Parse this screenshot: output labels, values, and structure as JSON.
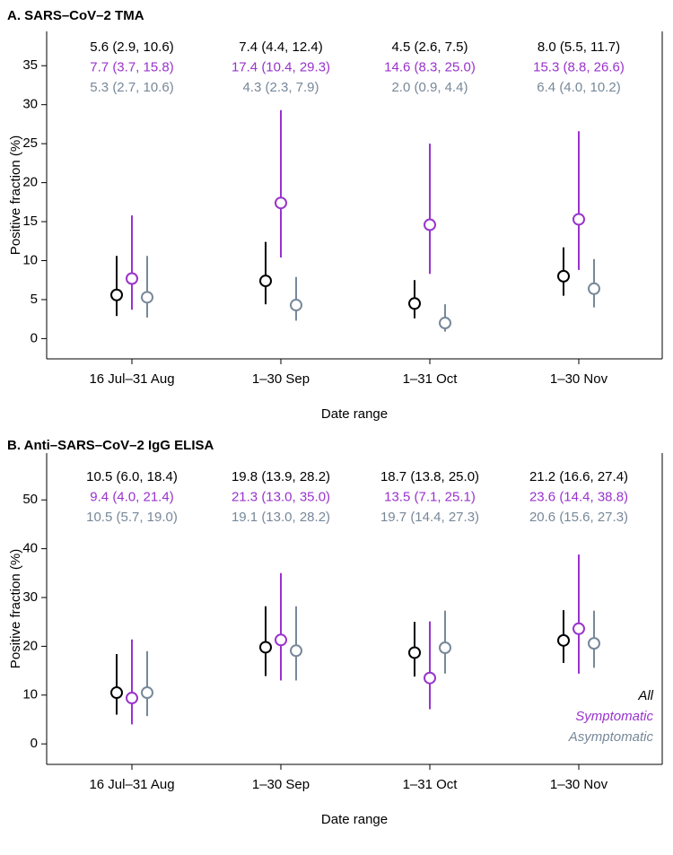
{
  "chart_data": [
    {
      "type": "pointrange",
      "title": "A. SARS–CoV–2 TMA",
      "x_label": "Date range",
      "y_label": "Positive fraction (%)",
      "categories": [
        "16 Jul–31 Aug",
        "1–30 Sep",
        "1–31 Oct",
        "1–30 Nov"
      ],
      "ylim": [
        -2.6,
        39.4
      ],
      "yticks": [
        0,
        5,
        10,
        15,
        20,
        25,
        30,
        35
      ],
      "series": [
        {
          "color": "#000000",
          "values": [
            5.6,
            7.4,
            4.5,
            8.0
          ],
          "lower": [
            2.9,
            4.4,
            2.6,
            5.5
          ],
          "upper": [
            10.6,
            12.4,
            7.5,
            11.7
          ],
          "value_labels": [
            "5.6 (2.9, 10.6)",
            "7.4 (4.4, 12.4)",
            "4.5 (2.6, 7.5)",
            "8.0 (5.5, 11.7)"
          ]
        },
        {
          "color": "#9933cc",
          "values": [
            7.7,
            17.4,
            14.6,
            15.3
          ],
          "lower": [
            3.7,
            10.4,
            8.3,
            8.8
          ],
          "upper": [
            15.8,
            29.3,
            25.0,
            26.6
          ],
          "value_labels": [
            "7.7 (3.7, 15.8)",
            "17.4 (10.4, 29.3)",
            "14.6 (8.3, 25.0)",
            "15.3 (8.8, 26.6)"
          ]
        },
        {
          "color": "#778899",
          "values": [
            5.3,
            4.3,
            2.0,
            6.4
          ],
          "lower": [
            2.7,
            2.3,
            0.9,
            4.0
          ],
          "upper": [
            10.6,
            7.9,
            4.4,
            10.2
          ],
          "value_labels": [
            "5.3 (2.7, 10.6)",
            "4.3 (2.3, 7.9)",
            "2.0 (0.9, 4.4)",
            "6.4 (4.0, 10.2)"
          ]
        }
      ]
    },
    {
      "type": "pointrange",
      "title": "B. Anti–SARS–CoV–2 IgG ELISA",
      "x_label": "Date range",
      "y_label": "Positive fraction (%)",
      "categories": [
        "16 Jul–31 Aug",
        "1–30 Sep",
        "1–31 Oct",
        "1–30 Nov"
      ],
      "ylim": [
        -4.2,
        59.6
      ],
      "yticks": [
        0,
        10,
        20,
        30,
        40,
        50
      ],
      "legend": "lower right",
      "series": [
        {
          "name": "All",
          "color": "#000000",
          "values": [
            10.5,
            19.8,
            18.7,
            21.2
          ],
          "lower": [
            6.0,
            13.9,
            13.8,
            16.6
          ],
          "upper": [
            18.4,
            28.2,
            25.0,
            27.4
          ],
          "value_labels": [
            "10.5 (6.0, 18.4)",
            "19.8 (13.9, 28.2)",
            "18.7 (13.8, 25.0)",
            "21.2 (16.6, 27.4)"
          ]
        },
        {
          "name": "Symptomatic",
          "color": "#9933cc",
          "values": [
            9.4,
            21.3,
            13.5,
            23.6
          ],
          "lower": [
            4.0,
            13.0,
            7.1,
            14.4
          ],
          "upper": [
            21.4,
            35.0,
            25.1,
            38.8
          ],
          "value_labels": [
            "9.4 (4.0, 21.4)",
            "21.3 (13.0, 35.0)",
            "13.5 (7.1, 25.1)",
            "23.6 (14.4, 38.8)"
          ]
        },
        {
          "name": "Asymptomatic",
          "color": "#778899",
          "values": [
            10.5,
            19.1,
            19.7,
            20.6
          ],
          "lower": [
            5.7,
            13.0,
            14.4,
            15.6
          ],
          "upper": [
            19.0,
            28.2,
            27.3,
            27.3
          ],
          "value_labels": [
            "10.5 (5.7, 19.0)",
            "19.1 (13.0, 28.2)",
            "19.7 (14.4, 27.3)",
            "20.6 (15.6, 27.3)"
          ]
        }
      ]
    }
  ]
}
